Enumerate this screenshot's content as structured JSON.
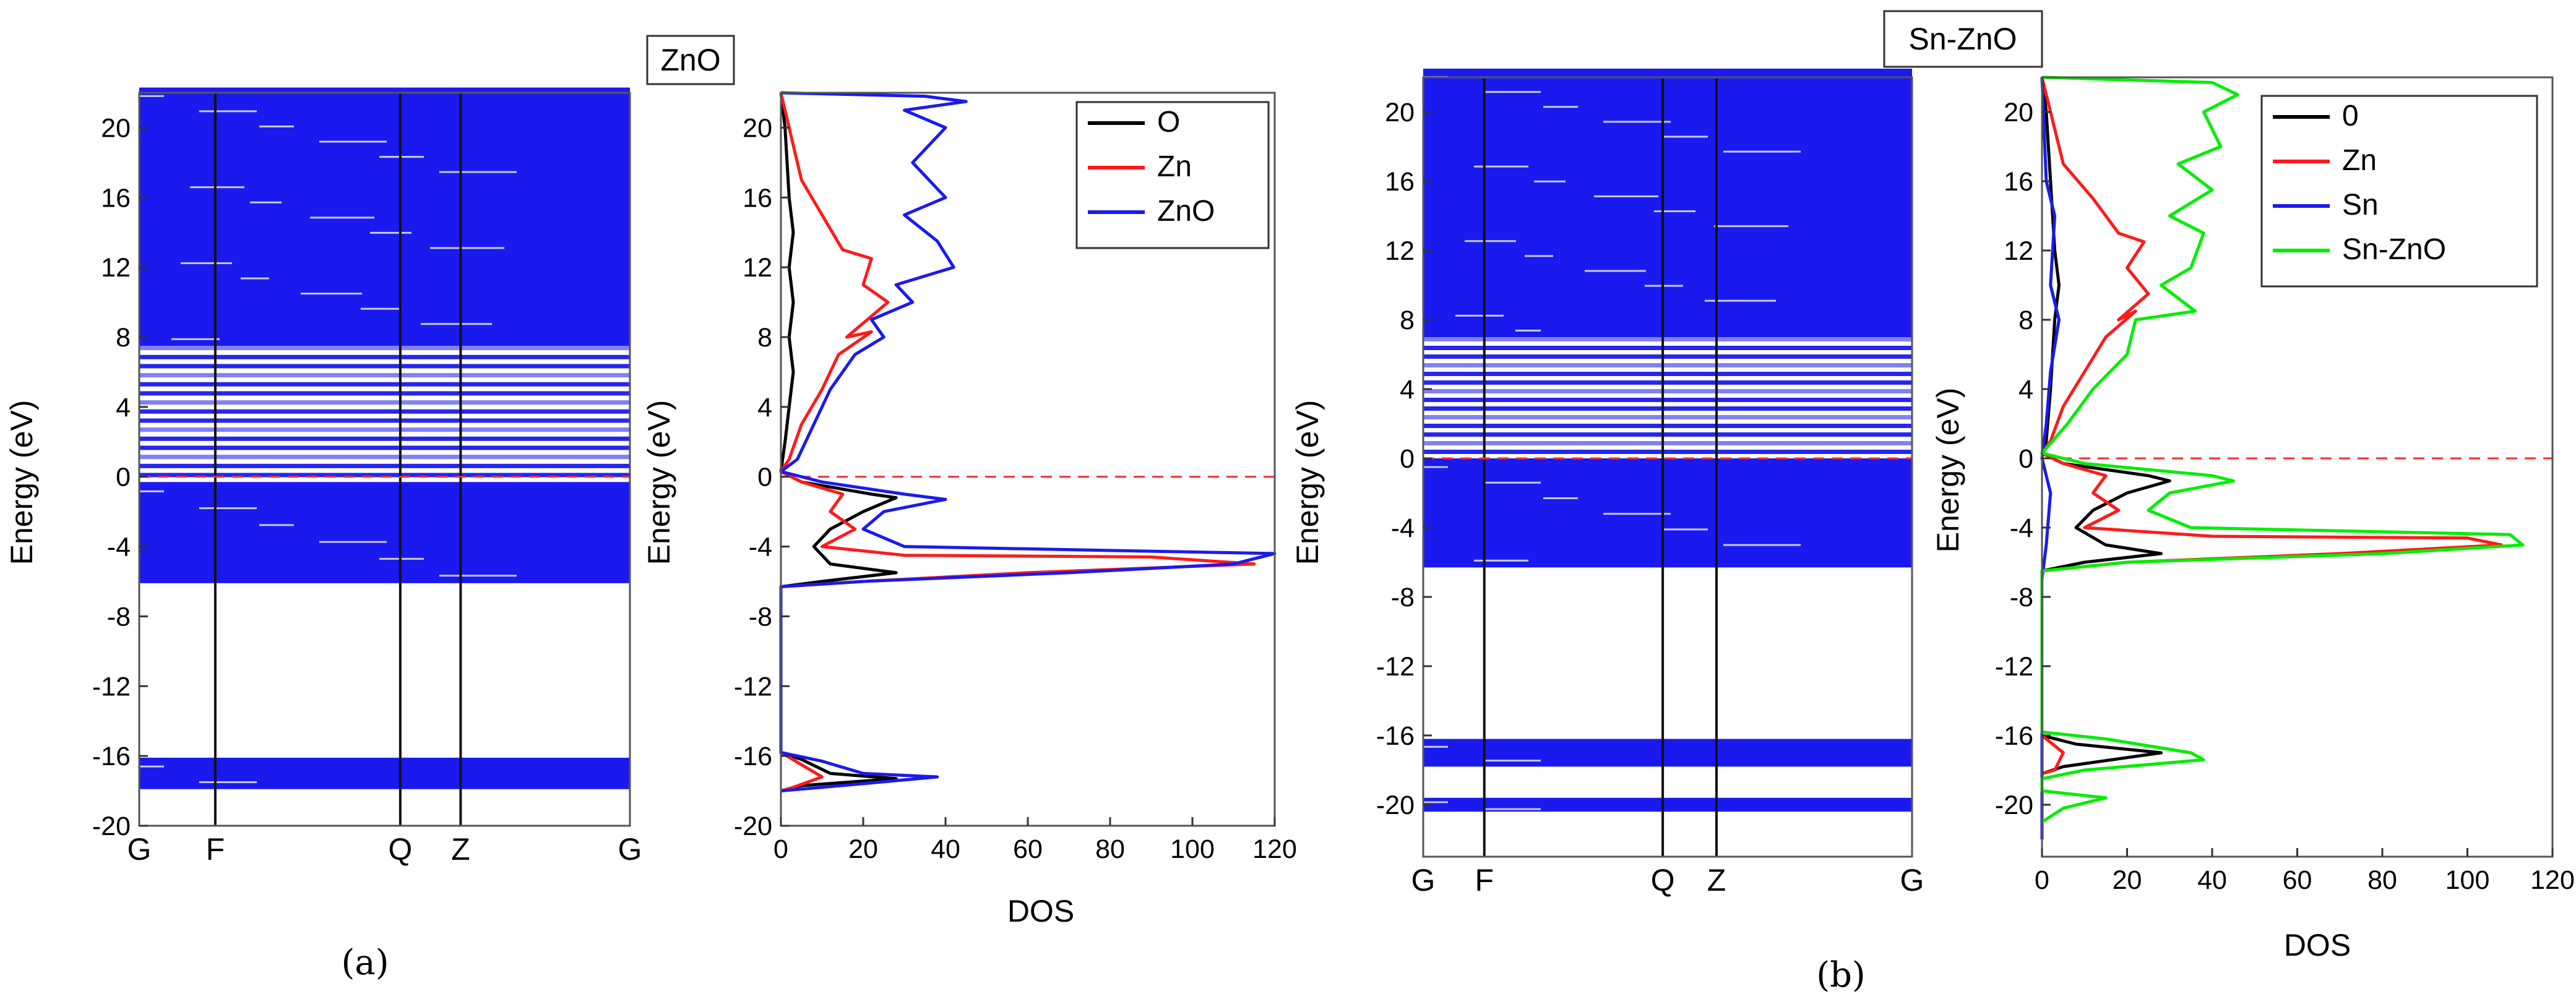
{
  "chart_data": [
    {
      "id": "a-band",
      "type": "band-structure",
      "title": "ZnO",
      "ylabel": "Energy (eV)",
      "ylim": [
        -20,
        22
      ],
      "yticks": [
        20,
        16,
        12,
        8,
        4,
        0,
        -4,
        -8,
        -12,
        -16,
        -20
      ],
      "kpoints": [
        "G",
        "F",
        "Q",
        "Z",
        "G"
      ],
      "kpoint_positions": [
        0,
        0.155,
        0.532,
        0.655,
        1
      ],
      "fermi_level": 0,
      "fill_color": "#1a1aee",
      "band_regions": [
        {
          "from": -6.1,
          "to": -0.3,
          "style": "dense"
        },
        {
          "from": -0.3,
          "to": 7.5,
          "style": "striped"
        },
        {
          "from": 7.5,
          "to": 22.3,
          "style": "dense"
        },
        {
          "from": -17.9,
          "to": -16.1,
          "style": "dense"
        }
      ],
      "caption": "(a)"
    },
    {
      "id": "a-dos",
      "type": "line",
      "xlabel": "DOS",
      "ylabel": "Energy (eV)",
      "xlim": [
        0,
        120
      ],
      "ylim": [
        -20,
        22
      ],
      "xticks": [
        0,
        20,
        40,
        60,
        80,
        100,
        120
      ],
      "yticks": [
        20,
        16,
        12,
        8,
        4,
        0,
        -4,
        -8,
        -12,
        -16,
        -20
      ],
      "fermi_level": 0,
      "legend_position": "top-right",
      "series": [
        {
          "name": "O",
          "color": "#000000",
          "points": [
            [
              0,
              22
            ],
            [
              1,
              20
            ],
            [
              2,
              16
            ],
            [
              3,
              14
            ],
            [
              2,
              12
            ],
            [
              3,
              10
            ],
            [
              2,
              8
            ],
            [
              3,
              6
            ],
            [
              2,
              4
            ],
            [
              1,
              2
            ],
            [
              0,
              0.3
            ],
            [
              5,
              -0.3
            ],
            [
              22,
              -1
            ],
            [
              28,
              -1.2
            ],
            [
              20,
              -2
            ],
            [
              12,
              -3
            ],
            [
              8,
              -4
            ],
            [
              12,
              -5
            ],
            [
              28,
              -5.5
            ],
            [
              10,
              -6
            ],
            [
              0,
              -6.3
            ],
            [
              0,
              -15.8
            ],
            [
              5,
              -16.2
            ],
            [
              12,
              -17
            ],
            [
              28,
              -17.3
            ],
            [
              5,
              -17.7
            ],
            [
              0,
              -18
            ]
          ]
        },
        {
          "name": "Zn",
          "color": "#ff1a1a",
          "points": [
            [
              0,
              22
            ],
            [
              2,
              20
            ],
            [
              5,
              17
            ],
            [
              10,
              15
            ],
            [
              15,
              13
            ],
            [
              22,
              12.5
            ],
            [
              20,
              11
            ],
            [
              26,
              10
            ],
            [
              16,
              8
            ],
            [
              22,
              8.3
            ],
            [
              14,
              7
            ],
            [
              10,
              5
            ],
            [
              5,
              3
            ],
            [
              2,
              1
            ],
            [
              0,
              0.3
            ],
            [
              5,
              -0.3
            ],
            [
              15,
              -1
            ],
            [
              12,
              -2
            ],
            [
              18,
              -3
            ],
            [
              10,
              -4
            ],
            [
              30,
              -4.5
            ],
            [
              90,
              -4.6
            ],
            [
              115,
              -5
            ],
            [
              60,
              -5.5
            ],
            [
              20,
              -6
            ],
            [
              0,
              -6.3
            ],
            [
              0,
              -15.8
            ],
            [
              5,
              -16.5
            ],
            [
              10,
              -17.2
            ],
            [
              3,
              -17.8
            ],
            [
              0,
              -18
            ]
          ]
        },
        {
          "name": "ZnO",
          "color": "#1a1aee",
          "points": [
            [
              0,
              22
            ],
            [
              35,
              21.8
            ],
            [
              45,
              21.5
            ],
            [
              30,
              21
            ],
            [
              40,
              20
            ],
            [
              32,
              18
            ],
            [
              40,
              16
            ],
            [
              30,
              15
            ],
            [
              38,
              13.5
            ],
            [
              42,
              12
            ],
            [
              28,
              11
            ],
            [
              32,
              10
            ],
            [
              22,
              9
            ],
            [
              25,
              8
            ],
            [
              18,
              7
            ],
            [
              12,
              5
            ],
            [
              8,
              3
            ],
            [
              4,
              1
            ],
            [
              0,
              0.3
            ],
            [
              10,
              -0.3
            ],
            [
              30,
              -1
            ],
            [
              40,
              -1.3
            ],
            [
              25,
              -2
            ],
            [
              20,
              -3
            ],
            [
              30,
              -4
            ],
            [
              120,
              -4.4
            ],
            [
              110,
              -5
            ],
            [
              70,
              -5.5
            ],
            [
              20,
              -6
            ],
            [
              0,
              -6.3
            ],
            [
              0,
              -15.8
            ],
            [
              10,
              -16.3
            ],
            [
              20,
              -17
            ],
            [
              38,
              -17.2
            ],
            [
              10,
              -17.8
            ],
            [
              0,
              -18
            ]
          ]
        }
      ]
    },
    {
      "id": "b-band",
      "type": "band-structure",
      "title": "Sn-ZnO",
      "ylabel": "Energy (eV)",
      "ylim": [
        -23,
        22
      ],
      "yticks": [
        20,
        16,
        12,
        8,
        4,
        0,
        -4,
        -8,
        -12,
        -16,
        -20
      ],
      "kpoints": [
        "G",
        "F",
        "Q",
        "Z",
        "G"
      ],
      "kpoint_positions": [
        0,
        0.125,
        0.49,
        0.6,
        1
      ],
      "fermi_level": 0,
      "fill_color": "#1a1aee",
      "band_regions": [
        {
          "from": -6.3,
          "to": 0,
          "style": "dense"
        },
        {
          "from": 0,
          "to": 7,
          "style": "striped"
        },
        {
          "from": 7,
          "to": 22.5,
          "style": "dense"
        },
        {
          "from": -17.8,
          "to": -16.2,
          "style": "dense"
        },
        {
          "from": -20.4,
          "to": -19.6,
          "style": "dense"
        }
      ],
      "caption": "(b)"
    },
    {
      "id": "b-dos",
      "type": "line",
      "xlabel": "DOS",
      "ylabel": "Energy (eV)",
      "xlim": [
        0,
        120
      ],
      "ylim": [
        -23,
        22
      ],
      "xticks": [
        0,
        20,
        40,
        60,
        80,
        100,
        120
      ],
      "yticks": [
        20,
        16,
        12,
        8,
        4,
        0,
        -4,
        -8,
        -12,
        -16,
        -20
      ],
      "fermi_level": 0,
      "legend_position": "top-right",
      "series": [
        {
          "name": "0",
          "color": "#000000",
          "points": [
            [
              0,
              22
            ],
            [
              1,
              20
            ],
            [
              2,
              16
            ],
            [
              3,
              12
            ],
            [
              4,
              10
            ],
            [
              3,
              8
            ],
            [
              2,
              4
            ],
            [
              1,
              1
            ],
            [
              0,
              0.3
            ],
            [
              5,
              -0.3
            ],
            [
              25,
              -1
            ],
            [
              30,
              -1.3
            ],
            [
              20,
              -2
            ],
            [
              12,
              -3
            ],
            [
              8,
              -4
            ],
            [
              15,
              -5
            ],
            [
              28,
              -5.5
            ],
            [
              10,
              -6
            ],
            [
              0,
              -6.5
            ],
            [
              0,
              -16
            ],
            [
              8,
              -16.5
            ],
            [
              28,
              -17
            ],
            [
              5,
              -17.8
            ],
            [
              0,
              -18.2
            ]
          ]
        },
        {
          "name": "Zn",
          "color": "#ff1a1a",
          "points": [
            [
              0,
              22
            ],
            [
              2,
              20
            ],
            [
              5,
              17
            ],
            [
              12,
              15
            ],
            [
              18,
              13
            ],
            [
              24,
              12.5
            ],
            [
              20,
              11
            ],
            [
              25,
              9.5
            ],
            [
              18,
              8
            ],
            [
              22,
              8.5
            ],
            [
              15,
              7
            ],
            [
              10,
              5
            ],
            [
              5,
              3
            ],
            [
              2,
              1
            ],
            [
              0,
              0.3
            ],
            [
              5,
              -0.3
            ],
            [
              15,
              -1
            ],
            [
              12,
              -2
            ],
            [
              18,
              -3
            ],
            [
              10,
              -4
            ],
            [
              40,
              -4.5
            ],
            [
              100,
              -4.6
            ],
            [
              108,
              -5
            ],
            [
              70,
              -5.5
            ],
            [
              20,
              -6
            ],
            [
              0,
              -6.5
            ],
            [
              0,
              -16
            ],
            [
              5,
              -17
            ],
            [
              3,
              -18
            ],
            [
              0,
              -18.2
            ]
          ]
        },
        {
          "name": "Sn",
          "color": "#1a1aee",
          "points": [
            [
              0,
              22
            ],
            [
              1,
              16
            ],
            [
              3,
              14
            ],
            [
              2,
              10
            ],
            [
              4,
              8
            ],
            [
              2,
              5
            ],
            [
              1,
              2
            ],
            [
              0,
              0
            ],
            [
              2,
              -2
            ],
            [
              1,
              -5
            ],
            [
              0,
              -7
            ],
            [
              0,
              -22
            ]
          ]
        },
        {
          "name": "Sn-ZnO",
          "color": "#00ee00",
          "points": [
            [
              0,
              22
            ],
            [
              40,
              21.7
            ],
            [
              46,
              21
            ],
            [
              38,
              20
            ],
            [
              42,
              18
            ],
            [
              32,
              17
            ],
            [
              40,
              15.5
            ],
            [
              30,
              14
            ],
            [
              38,
              13
            ],
            [
              35,
              11
            ],
            [
              28,
              10
            ],
            [
              36,
              8.5
            ],
            [
              22,
              8
            ],
            [
              20,
              6
            ],
            [
              12,
              4
            ],
            [
              6,
              2
            ],
            [
              0,
              0.3
            ],
            [
              10,
              -0.3
            ],
            [
              40,
              -1
            ],
            [
              45,
              -1.3
            ],
            [
              30,
              -2
            ],
            [
              25,
              -3
            ],
            [
              35,
              -4
            ],
            [
              110,
              -4.4
            ],
            [
              113,
              -5
            ],
            [
              80,
              -5.5
            ],
            [
              20,
              -6
            ],
            [
              0,
              -6.5
            ],
            [
              0,
              -15.8
            ],
            [
              15,
              -16.2
            ],
            [
              35,
              -17
            ],
            [
              38,
              -17.4
            ],
            [
              10,
              -18
            ],
            [
              0,
              -18.5
            ],
            [
              0,
              -19.2
            ],
            [
              15,
              -19.6
            ],
            [
              5,
              -20.2
            ],
            [
              0,
              -21
            ]
          ]
        }
      ]
    }
  ]
}
